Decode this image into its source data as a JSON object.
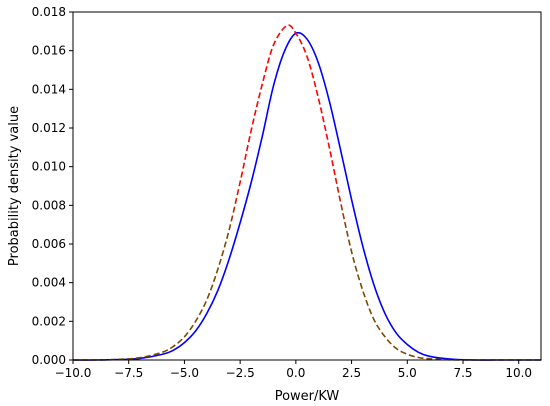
{
  "chart_data": {
    "type": "line",
    "title": "",
    "xlabel": "Power/KW",
    "ylabel": "Probability density value",
    "xlim": [
      -10,
      11
    ],
    "ylim": [
      0,
      0.018
    ],
    "grid": false,
    "x_ticks": [
      -10.0,
      -7.5,
      -5.0,
      -2.5,
      0.0,
      2.5,
      5.0,
      7.5,
      10.0
    ],
    "x_tick_labels": [
      "−10.0",
      "−7.5",
      "−5.0",
      "−2.5",
      "0.0",
      "2.5",
      "5.0",
      "7.5",
      "10.0"
    ],
    "y_ticks": [
      0.0,
      0.002,
      0.004,
      0.006,
      0.008,
      0.01,
      0.012,
      0.014,
      0.016,
      0.018
    ],
    "y_tick_labels": [
      "0.000",
      "0.002",
      "0.004",
      "0.006",
      "0.008",
      "0.010",
      "0.012",
      "0.014",
      "0.016",
      "0.018"
    ],
    "series": [
      {
        "color": "#0000ff",
        "style": "solid",
        "x": [
          -10,
          -9,
          -8,
          -7,
          -6,
          -5.5,
          -5,
          -4.5,
          -4,
          -3.5,
          -3,
          -2.5,
          -2,
          -1.5,
          -1,
          -0.5,
          0,
          0.5,
          1,
          1.5,
          2,
          2.5,
          3,
          3.5,
          4,
          4.5,
          5,
          5.5,
          6,
          7,
          8,
          9,
          10,
          11
        ],
        "y": [
          0.0,
          0.0,
          2e-05,
          8e-05,
          0.00029,
          0.0005,
          0.0009,
          0.0015,
          0.0024,
          0.0036,
          0.0052,
          0.0071,
          0.0092,
          0.0116,
          0.0142,
          0.016,
          0.0169,
          0.0166,
          0.0154,
          0.0134,
          0.0109,
          0.0083,
          0.0059,
          0.0039,
          0.0024,
          0.0014,
          0.0008,
          0.0004,
          0.00019,
          4e-05,
          0.0,
          0.0,
          0.0,
          0.0
        ]
      },
      {
        "color": "#ff0000",
        "color_tails": "#7a4a00",
        "style": "dashed",
        "x": [
          -10,
          -9,
          -8,
          -7,
          -6,
          -5.5,
          -5,
          -4.5,
          -4,
          -3.5,
          -3,
          -2.5,
          -2,
          -1.5,
          -1,
          -0.4,
          0,
          0.5,
          1,
          1.5,
          2,
          2.5,
          3,
          3.5,
          4,
          4.5,
          5,
          5.5,
          6,
          7,
          8,
          9,
          10,
          11
        ],
        "y": [
          0.0,
          0.0,
          3e-05,
          0.00012,
          0.0004,
          0.0007,
          0.0012,
          0.002,
          0.0031,
          0.0047,
          0.0067,
          0.0092,
          0.0119,
          0.0143,
          0.0163,
          0.0173,
          0.0169,
          0.0157,
          0.0136,
          0.011,
          0.0082,
          0.0056,
          0.0036,
          0.0021,
          0.0012,
          0.0006,
          0.0003,
          0.00013,
          6e-05,
          1e-05,
          0.0,
          0.0,
          0.0,
          0.0
        ]
      }
    ]
  }
}
